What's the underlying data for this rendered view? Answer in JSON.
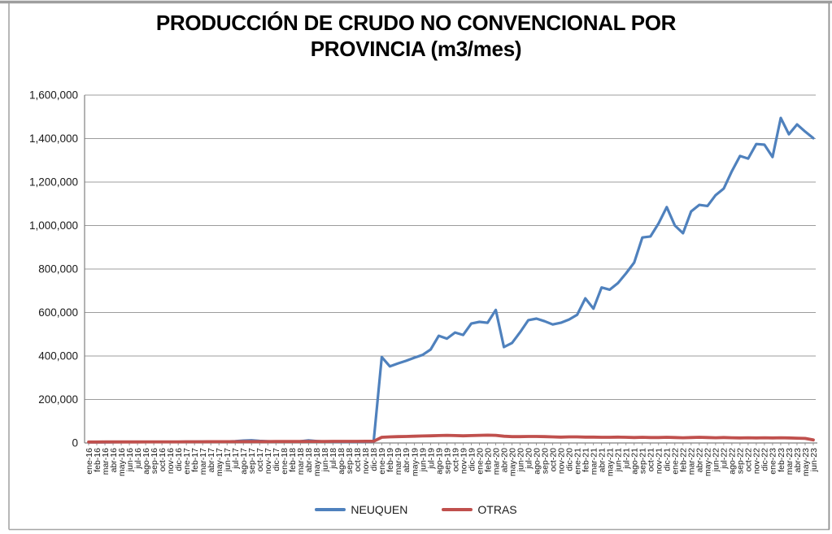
{
  "header": {
    "title_line1": "PRODUCCIÓN DE CRUDO NO CONVENCIONAL POR",
    "title_line2": "PROVINCIA (m3/mes)"
  },
  "chart_data": {
    "type": "line",
    "title": "PRODUCCIÓN DE CRUDO NO CONVENCIONAL POR PROVINCIA (m3/mes)",
    "xlabel": "",
    "ylabel": "",
    "ylim": [
      0,
      1600000
    ],
    "ytick_step": 200000,
    "y_tick_labels": [
      "0",
      "200,000",
      "400,000",
      "600,000",
      "800,000",
      "1,000,000",
      "1,200,000",
      "1,400,000",
      "1,600,000"
    ],
    "grid": true,
    "legend_position": "bottom",
    "categories": [
      "ene-16",
      "feb-16",
      "mar-16",
      "abr-16",
      "may-16",
      "jun-16",
      "jul-16",
      "ago-16",
      "sep-16",
      "oct-16",
      "nov-16",
      "dic-16",
      "ene-17",
      "feb-17",
      "mar-17",
      "abr-17",
      "may-17",
      "jun-17",
      "jul-17",
      "ago-17",
      "sep-17",
      "oct-17",
      "nov-17",
      "dic-17",
      "ene-18",
      "feb-18",
      "mar-18",
      "abr-18",
      "may-18",
      "jun-18",
      "jul-18",
      "ago-18",
      "sep-18",
      "oct-18",
      "nov-18",
      "dic-18",
      "ene-19",
      "feb-19",
      "mar-19",
      "abr-19",
      "may-19",
      "jun-19",
      "jul-19",
      "ago-19",
      "sep-19",
      "oct-19",
      "nov-19",
      "dic-19",
      "ene-20",
      "feb-20",
      "mar-20",
      "abr-20",
      "may-20",
      "jun-20",
      "jul-20",
      "ago-20",
      "sep-20",
      "oct-20",
      "nov-20",
      "dic-20",
      "ene-21",
      "feb-21",
      "mar-21",
      "abr-21",
      "may-21",
      "jun-21",
      "jul-21",
      "ago-21",
      "sep-21",
      "oct-21",
      "nov-21",
      "dic-21",
      "ene-22",
      "feb-22",
      "mar-22",
      "abr-22",
      "may-22",
      "jun-22",
      "jul-22",
      "ago-22",
      "sep-22",
      "oct-22",
      "nov-22",
      "dic-22",
      "ene-23",
      "feb-23",
      "mar-23",
      "abr-23",
      "may-23",
      "jun-23"
    ],
    "series": [
      {
        "name": "NEUQUEN",
        "color": "#4F81BD",
        "values": [
          3000,
          3200,
          3500,
          3800,
          4000,
          4200,
          4500,
          4800,
          5000,
          5000,
          5200,
          5400,
          5500,
          5600,
          5800,
          6000,
          6300,
          6800,
          8000,
          11000,
          12500,
          9500,
          7500,
          6500,
          6500,
          6800,
          7500,
          11500,
          8500,
          6500,
          5500,
          5200,
          5000,
          5200,
          5500,
          6000,
          395000,
          352000,
          366000,
          378000,
          392000,
          405000,
          430000,
          493000,
          480000,
          508000,
          497000,
          549000,
          557000,
          553000,
          612000,
          441000,
          460000,
          510000,
          565000,
          572000,
          560000,
          545000,
          553000,
          568000,
          590000,
          665000,
          618000,
          715000,
          705000,
          735000,
          780000,
          830000,
          945000,
          950000,
          1010000,
          1085000,
          1000000,
          965000,
          1065000,
          1095000,
          1090000,
          1140000,
          1170000,
          1250000,
          1320000,
          1308000,
          1375000,
          1372000,
          1315000,
          1495000,
          1420000,
          1465000,
          1432000,
          1402000
        ]
      },
      {
        "name": "OTRAS",
        "color": "#C0504D",
        "values": [
          4500,
          4600,
          4700,
          4800,
          4900,
          5000,
          5000,
          5100,
          5200,
          5200,
          5300,
          5400,
          5500,
          5600,
          5700,
          5800,
          5900,
          6000,
          6100,
          6200,
          6300,
          6400,
          6500,
          6600,
          6700,
          6800,
          6900,
          7000,
          7100,
          7200,
          7300,
          7400,
          7500,
          7600,
          7800,
          8000,
          26000,
          28000,
          29000,
          30000,
          31000,
          32000,
          33000,
          34000,
          35000,
          34000,
          33000,
          34000,
          35000,
          36000,
          35000,
          31000,
          29000,
          29000,
          30000,
          30000,
          29000,
          28000,
          27000,
          28000,
          28000,
          27000,
          27000,
          26000,
          26000,
          27000,
          26000,
          25000,
          26000,
          25000,
          25000,
          26000,
          25000,
          24000,
          25000,
          26000,
          25000,
          24000,
          25000,
          24000,
          23000,
          24000,
          23000,
          24000,
          23000,
          24000,
          23000,
          22000,
          21000,
          14000
        ]
      }
    ]
  }
}
